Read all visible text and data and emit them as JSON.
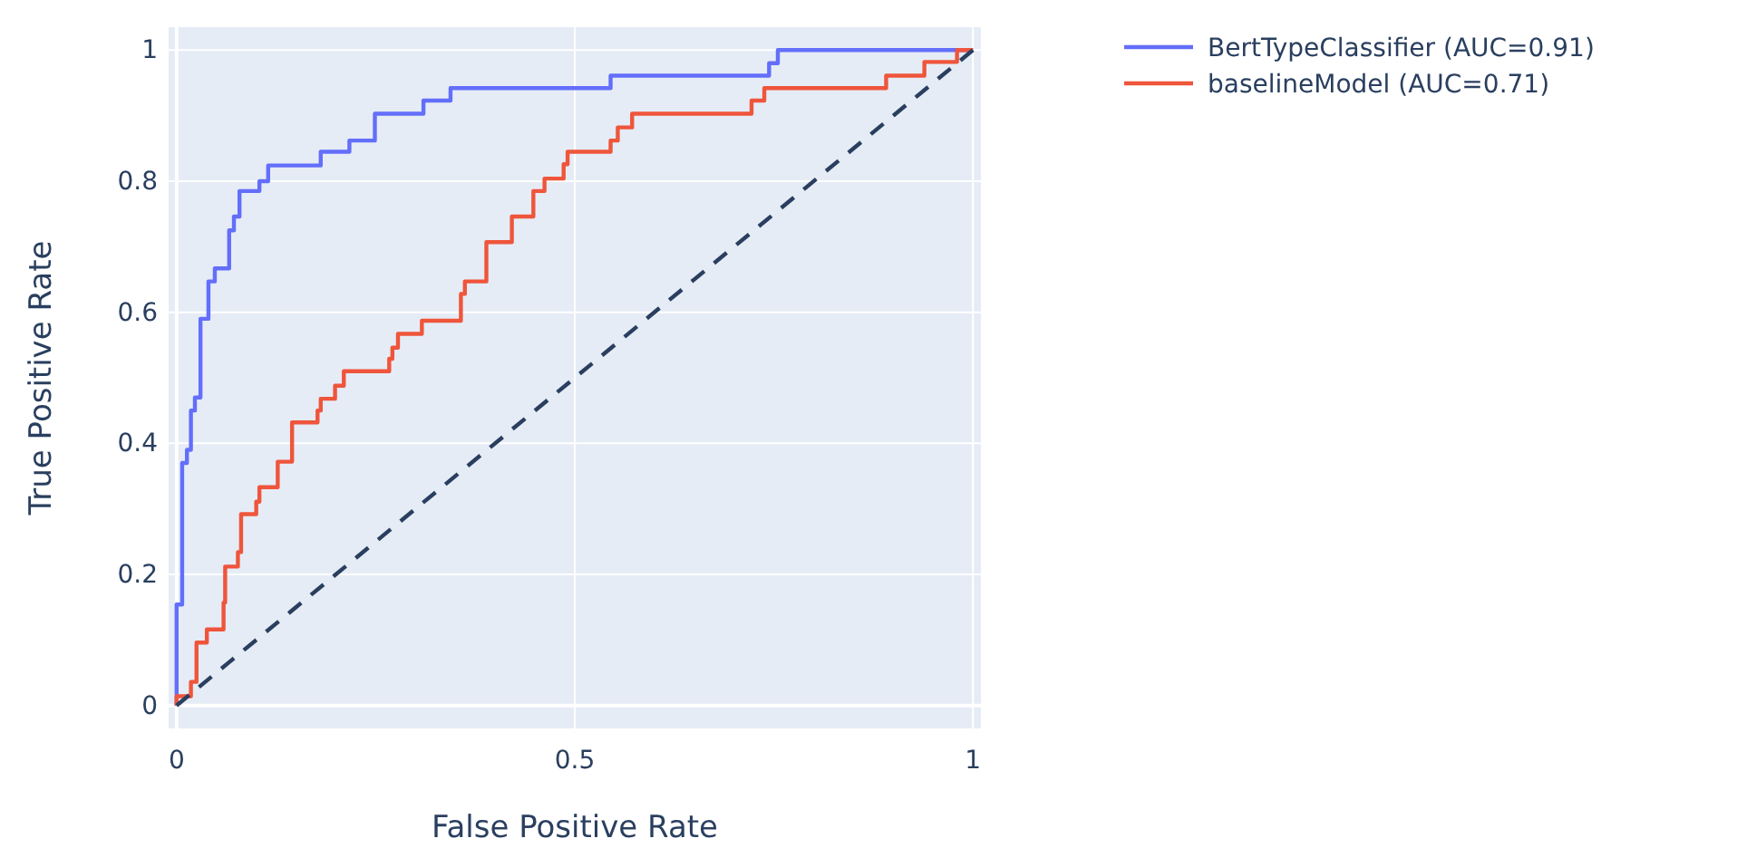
{
  "chart_data": {
    "type": "line",
    "xlabel": "False Positive Rate",
    "ylabel": "True Positive Rate",
    "xlim": [
      -0.01,
      1.01
    ],
    "ylim": [
      -0.035,
      1.035
    ],
    "xticks": [
      0,
      0.5,
      1
    ],
    "yticks": [
      0,
      0.2,
      0.4,
      0.6,
      0.8,
      1
    ],
    "grid": true,
    "legend": "top right",
    "line_style": "solid",
    "marker": "none",
    "series": [
      {
        "name": "BertTypeClassifier (AUC=0.91)",
        "color": "#636efa",
        "x": [
          0,
          0,
          0.007,
          0.007,
          0.013,
          0.013,
          0.018,
          0.018,
          0.023,
          0.023,
          0.03,
          0.03,
          0.04,
          0.04,
          0.048,
          0.048,
          0.066,
          0.066,
          0.072,
          0.072,
          0.079,
          0.079,
          0.104,
          0.104,
          0.115,
          0.115,
          0.181,
          0.181,
          0.217,
          0.217,
          0.249,
          0.249,
          0.31,
          0.31,
          0.344,
          0.344,
          0.545,
          0.545,
          0.744,
          0.744,
          0.755,
          0.755,
          1
        ],
        "values": [
          0,
          0.154,
          0.154,
          0.37,
          0.37,
          0.39,
          0.39,
          0.45,
          0.45,
          0.47,
          0.47,
          0.59,
          0.59,
          0.647,
          0.647,
          0.667,
          0.667,
          0.725,
          0.725,
          0.746,
          0.746,
          0.785,
          0.785,
          0.8,
          0.8,
          0.824,
          0.824,
          0.845,
          0.845,
          0.862,
          0.862,
          0.903,
          0.903,
          0.923,
          0.923,
          0.942,
          0.942,
          0.961,
          0.961,
          0.98,
          0.98,
          1,
          1
        ]
      },
      {
        "name": "baselineModel (AUC=0.71)",
        "color": "#ef553b",
        "x": [
          0,
          0,
          0.018,
          0.018,
          0.025,
          0.025,
          0.038,
          0.038,
          0.059,
          0.059,
          0.061,
          0.061,
          0.077,
          0.077,
          0.081,
          0.081,
          0.1,
          0.1,
          0.104,
          0.104,
          0.127,
          0.127,
          0.145,
          0.145,
          0.177,
          0.177,
          0.181,
          0.181,
          0.199,
          0.199,
          0.21,
          0.21,
          0.267,
          0.267,
          0.271,
          0.271,
          0.278,
          0.278,
          0.308,
          0.308,
          0.357,
          0.357,
          0.362,
          0.362,
          0.389,
          0.389,
          0.421,
          0.421,
          0.448,
          0.448,
          0.462,
          0.462,
          0.486,
          0.486,
          0.491,
          0.491,
          0.545,
          0.545,
          0.554,
          0.554,
          0.572,
          0.572,
          0.722,
          0.722,
          0.738,
          0.738,
          0.891,
          0.891,
          0.939,
          0.939,
          0.98,
          0.98,
          1
        ],
        "values": [
          0,
          0.014,
          0.014,
          0.036,
          0.036,
          0.096,
          0.096,
          0.116,
          0.116,
          0.157,
          0.157,
          0.212,
          0.212,
          0.234,
          0.234,
          0.292,
          0.292,
          0.311,
          0.311,
          0.333,
          0.333,
          0.372,
          0.372,
          0.432,
          0.432,
          0.45,
          0.45,
          0.468,
          0.468,
          0.488,
          0.488,
          0.51,
          0.51,
          0.529,
          0.529,
          0.546,
          0.546,
          0.567,
          0.567,
          0.587,
          0.587,
          0.628,
          0.628,
          0.647,
          0.647,
          0.707,
          0.707,
          0.746,
          0.746,
          0.785,
          0.785,
          0.804,
          0.804,
          0.826,
          0.826,
          0.845,
          0.845,
          0.862,
          0.862,
          0.882,
          0.882,
          0.903,
          0.903,
          0.923,
          0.923,
          0.942,
          0.942,
          0.961,
          0.961,
          0.982,
          0.982,
          1,
          1
        ]
      },
      {
        "type": "line",
        "color": "#2a3f5f",
        "line_style": "dashed",
        "x": [
          0,
          1
        ],
        "values": [
          0,
          1
        ]
      }
    ]
  }
}
